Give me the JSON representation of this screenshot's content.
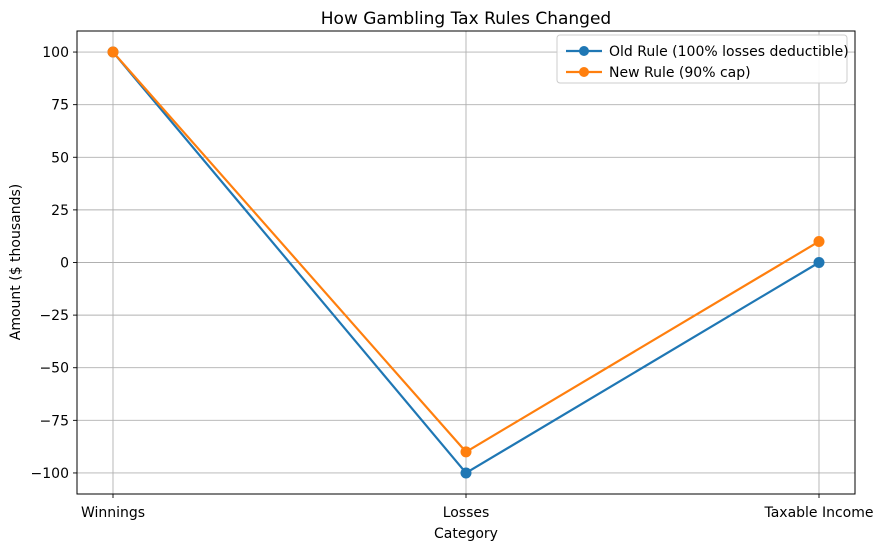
{
  "chart_data": {
    "type": "line",
    "title": "How Gambling Tax Rules Changed",
    "xlabel": "Category",
    "ylabel": "Amount ($ thousands)",
    "categories": [
      "Winnings",
      "Losses",
      "Taxable Income"
    ],
    "series": [
      {
        "name": "Old Rule (100% losses deductible)",
        "color": "#1f77b4",
        "values": [
          100,
          -100,
          0
        ]
      },
      {
        "name": "New Rule (90% cap)",
        "color": "#ff7f0e",
        "values": [
          100,
          -90,
          10
        ]
      }
    ],
    "yticks": [
      100,
      75,
      50,
      25,
      0,
      -25,
      -50,
      -75,
      -100
    ],
    "ytick_labels": [
      "100",
      "75",
      "50",
      "25",
      "0",
      "−25",
      "−50",
      "−75",
      "−100"
    ],
    "ylim": [
      -110,
      110
    ],
    "grid": true,
    "legend_position": "upper right",
    "marker": "circle",
    "colors": {
      "grid": "#b0b0b0",
      "spine": "#000000",
      "text": "#000000",
      "legend_border": "#cccccc",
      "background": "#ffffff"
    }
  }
}
